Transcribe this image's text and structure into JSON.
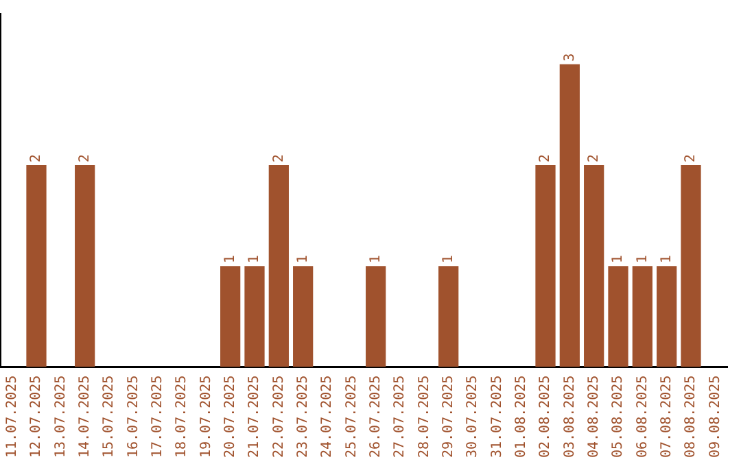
{
  "chart_data": {
    "type": "bar",
    "categories": [
      "11.07.2025",
      "12.07.2025",
      "13.07.2025",
      "14.07.2025",
      "15.07.2025",
      "16.07.2025",
      "17.07.2025",
      "18.07.2025",
      "19.07.2025",
      "20.07.2025",
      "21.07.2025",
      "22.07.2025",
      "23.07.2025",
      "24.07.2025",
      "25.07.2025",
      "26.07.2025",
      "27.07.2025",
      "28.07.2025",
      "29.07.2025",
      "30.07.2025",
      "31.07.2025",
      "01.08.2025",
      "02.08.2025",
      "03.08.2025",
      "04.08.2025",
      "05.08.2025",
      "06.08.2025",
      "07.08.2025",
      "08.08.2025",
      "09.08.2025"
    ],
    "values": [
      0,
      2,
      0,
      2,
      0,
      0,
      0,
      0,
      0,
      1,
      1,
      2,
      1,
      0,
      0,
      1,
      0,
      0,
      1,
      0,
      0,
      0,
      2,
      3,
      2,
      1,
      1,
      1,
      2,
      0
    ],
    "value_labels": [
      null,
      "2",
      null,
      "2",
      null,
      null,
      null,
      null,
      null,
      "1",
      "1",
      "2",
      "1",
      null,
      null,
      "1",
      null,
      null,
      "1",
      null,
      null,
      null,
      "2",
      "3",
      "2",
      "1",
      "1",
      "1",
      "2",
      null
    ],
    "color": "#a0522d",
    "grid": false,
    "legend": false,
    "tick_labels": "x"
  }
}
